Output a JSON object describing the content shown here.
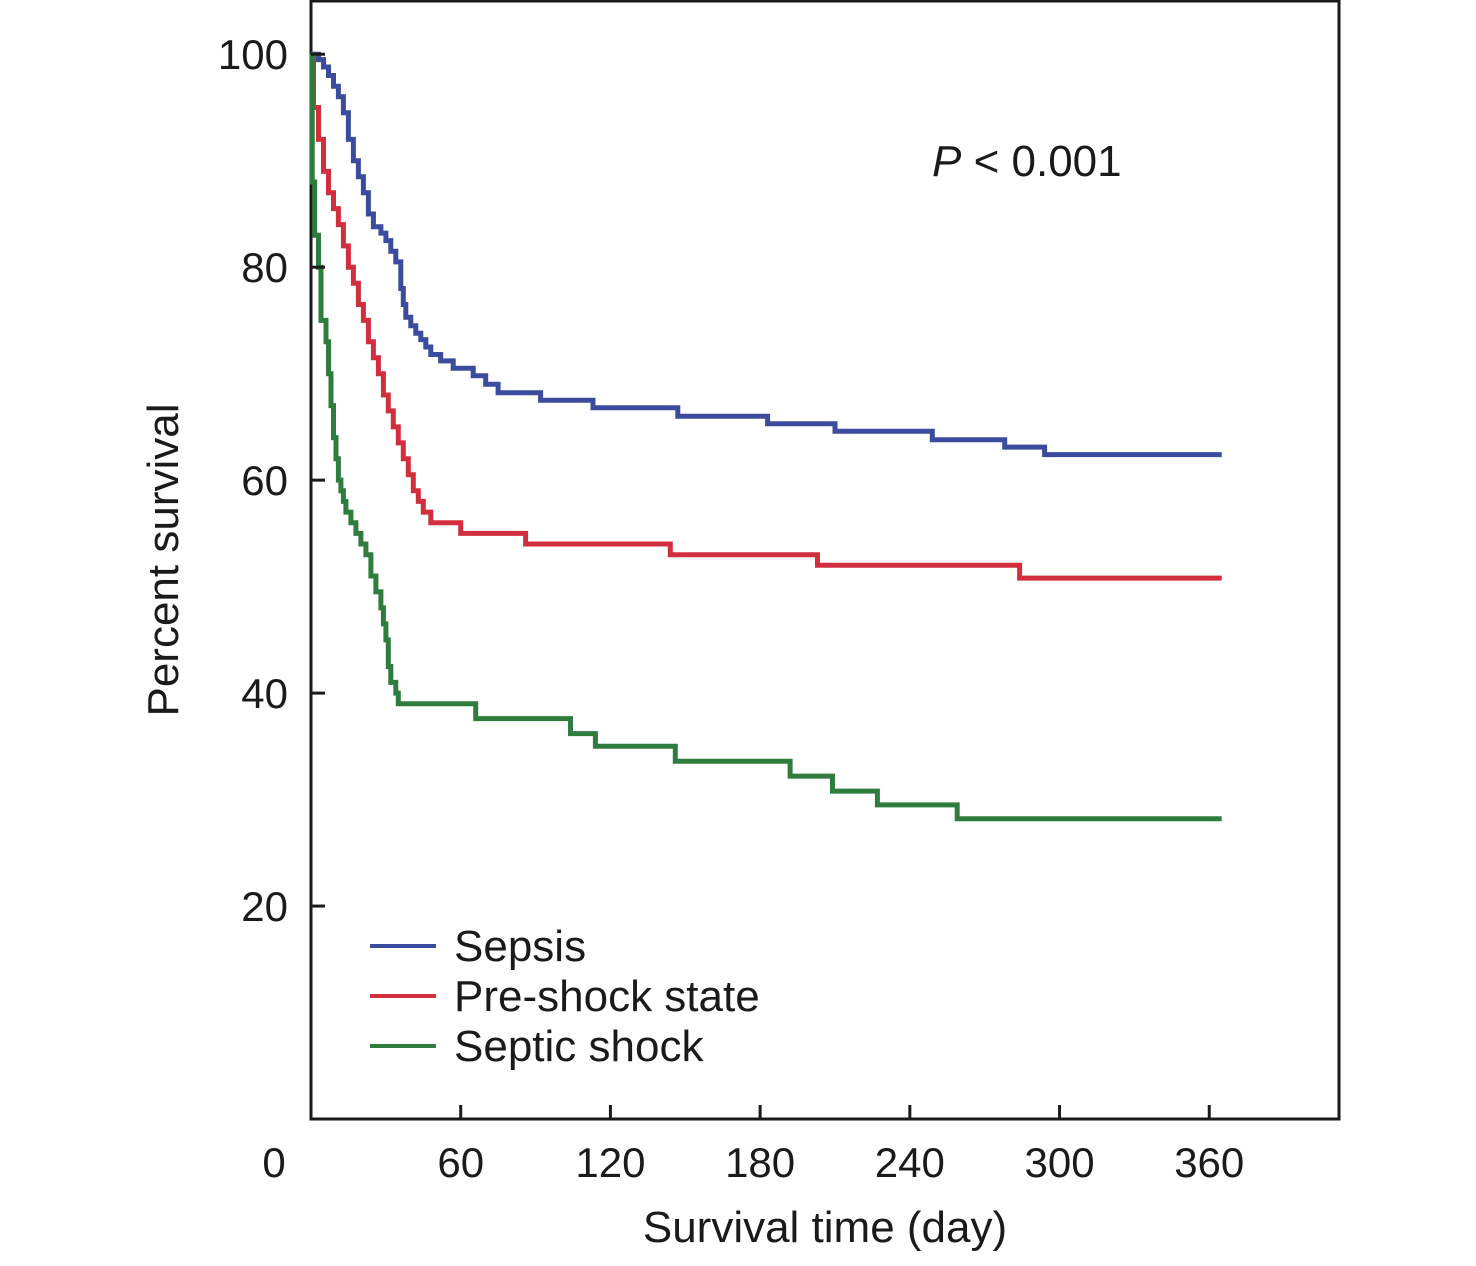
{
  "chart_data": {
    "type": "line",
    "step": true,
    "xlabel": "Survival time (day)",
    "ylabel": "Percent survival",
    "xlim": [
      0,
      412
    ],
    "ylim": [
      0,
      105
    ],
    "x_ticks": [
      60,
      120,
      180,
      240,
      300,
      360
    ],
    "x_tick_labels": [
      "60",
      "120",
      "180",
      "240",
      "300",
      "360"
    ],
    "origin_label": "0",
    "y_ticks": [
      20,
      40,
      60,
      80,
      100
    ],
    "y_tick_labels": [
      "20",
      "40",
      "60",
      "80",
      100
    ],
    "grid": false,
    "legend": "bottom-left",
    "annotation": {
      "prefix": "P",
      "text": " < 0.001",
      "position": "top-right"
    },
    "series": [
      {
        "name": "Sepsis",
        "color": "#3b4c9e",
        "points": [
          [
            0,
            100
          ],
          [
            3,
            99.5
          ],
          [
            5,
            98.8
          ],
          [
            7,
            98
          ],
          [
            9,
            97
          ],
          [
            11,
            96
          ],
          [
            13,
            94.5
          ],
          [
            15,
            92
          ],
          [
            17,
            90
          ],
          [
            19,
            88.5
          ],
          [
            21,
            87
          ],
          [
            23,
            85
          ],
          [
            25,
            83.8
          ],
          [
            28,
            83.2
          ],
          [
            30,
            82.5
          ],
          [
            32,
            81.5
          ],
          [
            34,
            80.5
          ],
          [
            36,
            78
          ],
          [
            37,
            76.5
          ],
          [
            38,
            75.3
          ],
          [
            40,
            74.5
          ],
          [
            42,
            73.8
          ],
          [
            44,
            73.2
          ],
          [
            46,
            72.5
          ],
          [
            48,
            71.8
          ],
          [
            52,
            71.2
          ],
          [
            57,
            70.5
          ],
          [
            65,
            69.8
          ],
          [
            70,
            69
          ],
          [
            75,
            68.2
          ],
          [
            92,
            67.5
          ],
          [
            113,
            66.8
          ],
          [
            147,
            66
          ],
          [
            183,
            65.3
          ],
          [
            210,
            64.6
          ],
          [
            249,
            63.8
          ],
          [
            278,
            63.1
          ],
          [
            294,
            62.4
          ],
          [
            365,
            62.4
          ]
        ]
      },
      {
        "name": "Pre-shock state",
        "color": "#d22f3e",
        "points": [
          [
            0,
            100
          ],
          [
            1,
            95
          ],
          [
            3,
            92
          ],
          [
            5,
            89
          ],
          [
            7,
            87
          ],
          [
            9,
            85.5
          ],
          [
            11,
            84
          ],
          [
            13,
            82
          ],
          [
            15,
            80
          ],
          [
            17,
            78.5
          ],
          [
            19,
            76.5
          ],
          [
            21,
            75
          ],
          [
            23,
            73
          ],
          [
            25,
            71.5
          ],
          [
            27,
            70
          ],
          [
            29,
            68
          ],
          [
            31,
            66.5
          ],
          [
            33,
            65
          ],
          [
            35,
            63.5
          ],
          [
            37,
            62
          ],
          [
            39,
            60.5
          ],
          [
            41,
            59
          ],
          [
            43,
            58
          ],
          [
            45,
            57
          ],
          [
            48,
            56
          ],
          [
            60,
            55
          ],
          [
            86,
            54
          ],
          [
            144,
            53
          ],
          [
            203,
            52
          ],
          [
            284,
            50.8
          ],
          [
            365,
            50.8
          ]
        ]
      },
      {
        "name": "Septic shock",
        "color": "#2e7d3f",
        "points": [
          [
            0,
            100
          ],
          [
            0.5,
            88
          ],
          [
            1.5,
            83
          ],
          [
            3,
            80
          ],
          [
            4,
            75
          ],
          [
            6,
            73
          ],
          [
            7,
            70
          ],
          [
            8,
            67
          ],
          [
            9,
            64
          ],
          [
            10,
            62
          ],
          [
            11,
            60
          ],
          [
            12,
            59
          ],
          [
            13,
            58
          ],
          [
            14,
            57
          ],
          [
            16,
            56
          ],
          [
            18,
            55
          ],
          [
            20,
            54
          ],
          [
            22,
            53
          ],
          [
            24,
            51
          ],
          [
            26,
            49.5
          ],
          [
            28,
            48
          ],
          [
            29,
            46.5
          ],
          [
            30,
            45
          ],
          [
            31,
            42.5
          ],
          [
            32,
            41
          ],
          [
            34,
            40
          ],
          [
            35,
            39
          ],
          [
            66,
            37.6
          ],
          [
            104,
            36.2
          ],
          [
            114,
            35
          ],
          [
            146,
            33.6
          ],
          [
            192,
            32.2
          ],
          [
            209,
            30.8
          ],
          [
            227,
            29.5
          ],
          [
            259,
            28.2
          ],
          [
            365,
            28.2
          ]
        ]
      }
    ]
  }
}
